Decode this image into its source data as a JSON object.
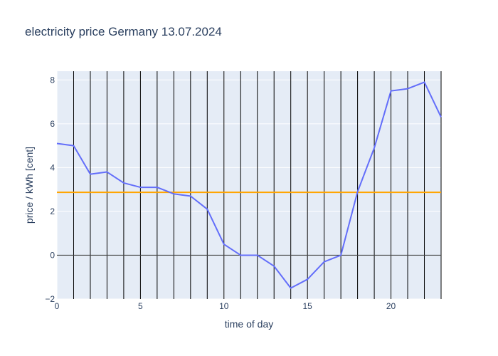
{
  "chart_data": {
    "type": "line",
    "title": "electricity price Germany 13.07.2024",
    "xlabel": "time of day",
    "ylabel": "price / kWh [cent]",
    "xlim": [
      0,
      23
    ],
    "ylim": [
      -2,
      8.4
    ],
    "xticks": [
      0,
      5,
      10,
      15,
      20
    ],
    "yticks": [
      -2,
      0,
      2,
      4,
      6,
      8
    ],
    "ytick_labels": [
      "−2",
      "0",
      "2",
      "4",
      "6",
      "8"
    ],
    "grid": true,
    "x": [
      0,
      1,
      2,
      3,
      4,
      5,
      6,
      7,
      8,
      9,
      10,
      11,
      12,
      13,
      14,
      15,
      16,
      17,
      18,
      19,
      20,
      21,
      22,
      23
    ],
    "series": [
      {
        "values": [
          5.1,
          5.0,
          3.7,
          3.8,
          3.3,
          3.1,
          3.1,
          2.8,
          2.7,
          2.1,
          0.5,
          0.0,
          0.0,
          -0.5,
          -1.5,
          -1.1,
          -0.3,
          0.0,
          2.9,
          4.9,
          7.5,
          7.6,
          7.9,
          6.3
        ],
        "color": "#636efa"
      }
    ],
    "reference_line": {
      "y": 2.87,
      "color": "#ffa500"
    },
    "zero_line": {
      "y": 0,
      "color": "#444444"
    },
    "vertical_lines": [
      1,
      2,
      3,
      4,
      5,
      6,
      7,
      8,
      9,
      10,
      11,
      12,
      13,
      14,
      15,
      16,
      17,
      18,
      19,
      20,
      21,
      22,
      23
    ],
    "vertical_line_color": "#000000",
    "plot_background": "#e5ecf6"
  }
}
